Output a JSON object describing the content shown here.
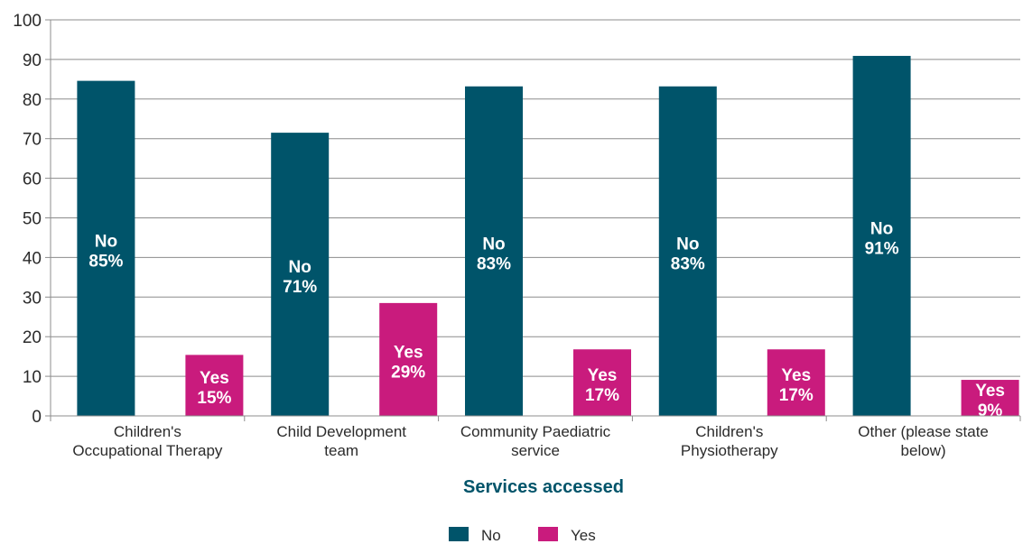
{
  "chart_data": {
    "type": "bar",
    "categories": [
      [
        "Children's",
        "Occupational Therapy"
      ],
      [
        "Child Development",
        "team"
      ],
      [
        "Community Paediatric",
        "service"
      ],
      [
        "Children's",
        "Physiotherapy"
      ],
      [
        "Other (please state",
        "below)"
      ]
    ],
    "series": [
      {
        "name": "No",
        "color": "#00546a",
        "values": [
          84.6,
          71.5,
          83.2,
          83.2,
          90.9
        ],
        "labels": [
          "85%",
          "71%",
          "83%",
          "83%",
          "91%"
        ]
      },
      {
        "name": "Yes",
        "color": "#c91b7d",
        "values": [
          15.4,
          28.5,
          16.8,
          16.8,
          9.1
        ],
        "labels": [
          "15%",
          "29%",
          "17%",
          "17%",
          "9%"
        ]
      }
    ],
    "xlabel": "Services accessed",
    "xlabel_color": "#00546a",
    "ylabel": "",
    "ylim": [
      0,
      100
    ],
    "yticks": [
      0,
      10,
      20,
      30,
      40,
      50,
      60,
      70,
      80,
      90,
      100
    ],
    "grid": true,
    "legend_position": "bottom"
  }
}
